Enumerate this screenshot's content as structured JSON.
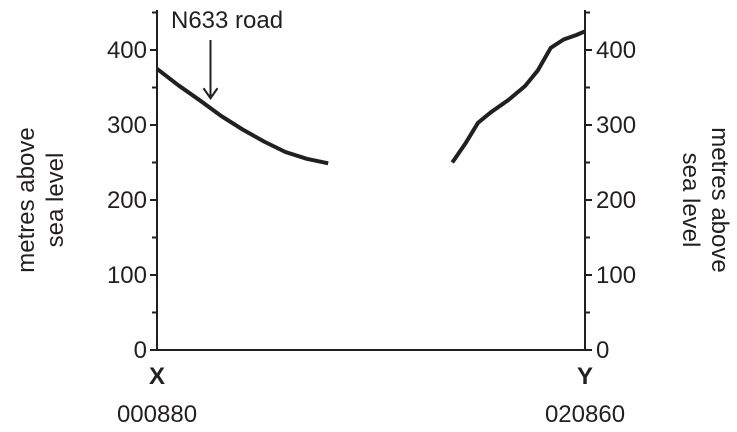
{
  "chart_data": {
    "type": "line",
    "title": "",
    "ylabel_left": [
      "metres above",
      "sea level"
    ],
    "ylabel_right": [
      "metres above",
      "sea level"
    ],
    "ylim": [
      0,
      450
    ],
    "yticks": [
      0,
      100,
      200,
      300,
      400
    ],
    "ytick_labels": [
      "0",
      "100",
      "200",
      "300",
      "400"
    ],
    "y_minor_step": 50,
    "xlim": [
      0,
      1
    ],
    "x_start_label": "X",
    "x_end_label": "Y",
    "x_start_ref": "000880",
    "x_end_ref": "020860",
    "grid": false,
    "series": [
      {
        "x": [
          0,
          0.05,
          0.1,
          0.15,
          0.2,
          0.25,
          0.3,
          0.35,
          0.4
        ],
        "values": [
          375,
          353,
          333,
          312,
          294,
          278,
          264,
          255,
          249
        ]
      },
      {
        "x": [
          0.69,
          0.72,
          0.75,
          0.78,
          0.82,
          0.86,
          0.89,
          0.91,
          0.92,
          0.95,
          0.98,
          1.0
        ],
        "values": [
          250,
          275,
          303,
          317,
          333,
          352,
          373,
          393,
          403,
          414,
          420,
          425
        ]
      }
    ],
    "annotations": [
      {
        "text": "N633 road",
        "x": 0.125,
        "y": 333
      }
    ]
  }
}
